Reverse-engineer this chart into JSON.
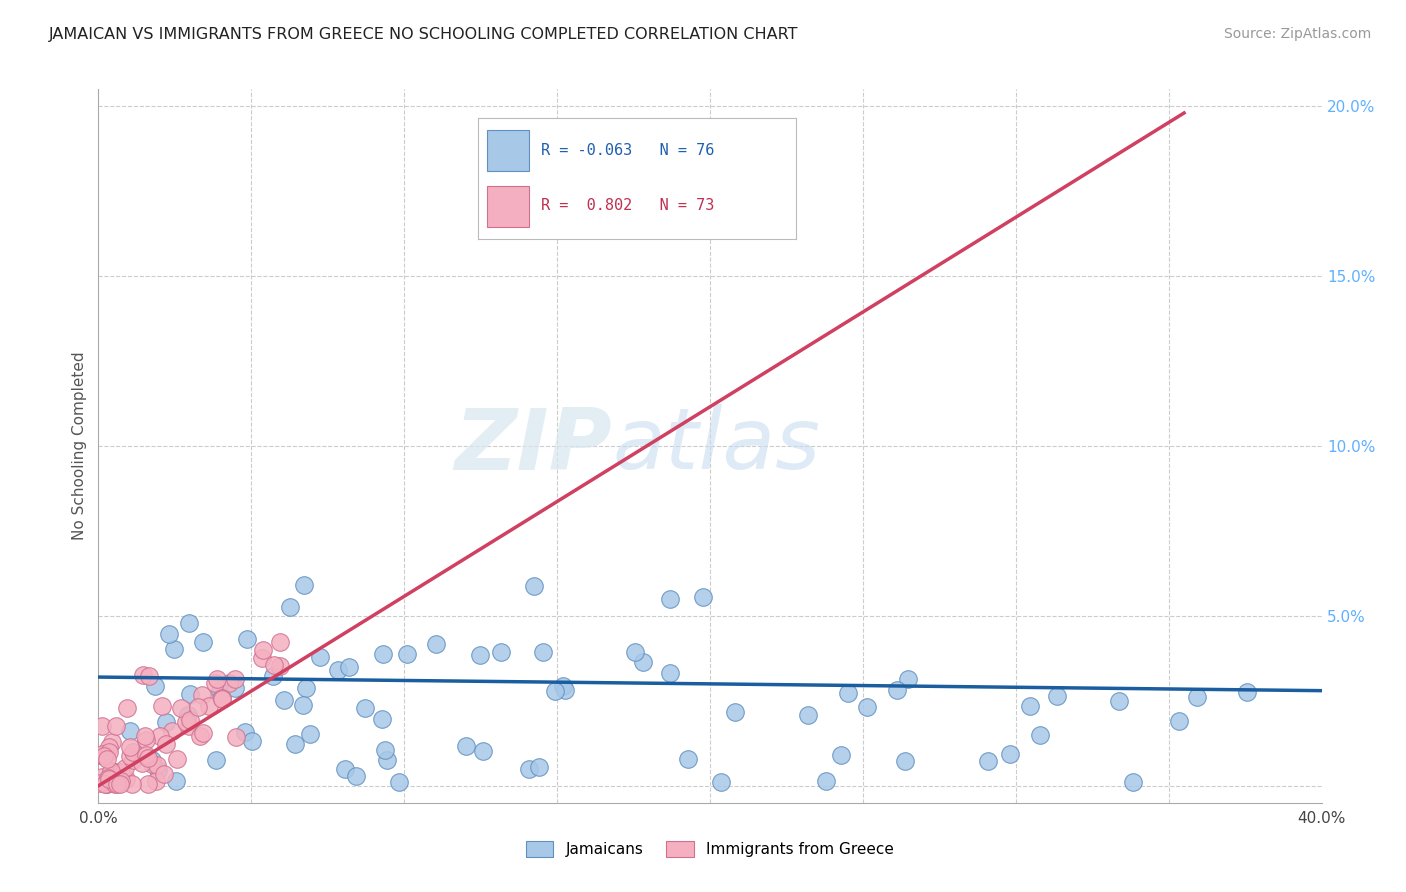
{
  "title": "JAMAICAN VS IMMIGRANTS FROM GREECE NO SCHOOLING COMPLETED CORRELATION CHART",
  "source_text": "Source: ZipAtlas.com",
  "ylabel": "No Schooling Completed",
  "watermark": "ZIPatlas",
  "xlim": [
    0.0,
    0.4
  ],
  "ylim": [
    -0.005,
    0.205
  ],
  "xticks": [
    0.0,
    0.05,
    0.1,
    0.15,
    0.2,
    0.25,
    0.3,
    0.35,
    0.4
  ],
  "xtick_labels": [
    "0.0%",
    "",
    "",
    "",
    "",
    "",
    "",
    "",
    "40.0%"
  ],
  "yticks_right": [
    0.0,
    0.05,
    0.1,
    0.15,
    0.2
  ],
  "ytick_labels_right": [
    "",
    "5.0%",
    "10.0%",
    "15.0%",
    "20.0%"
  ],
  "blue_color": "#a8c8e8",
  "pink_color": "#f4b0c0",
  "blue_edge_color": "#6090c0",
  "pink_edge_color": "#d07090",
  "blue_line_color": "#1a5ea0",
  "pink_line_color": "#d04060",
  "legend_label_blue": "Jamaicans",
  "legend_label_pink": "Immigrants from Greece",
  "bg_color": "#ffffff",
  "title_color": "#222222",
  "grid_color": "#cccccc",
  "right_axis_color": "#60b0ff",
  "blue_line_y0": 0.032,
  "blue_line_y1": 0.028,
  "pink_line_x0": 0.0,
  "pink_line_y0": 0.0,
  "pink_line_x1": 0.355,
  "pink_line_y1": 0.198
}
